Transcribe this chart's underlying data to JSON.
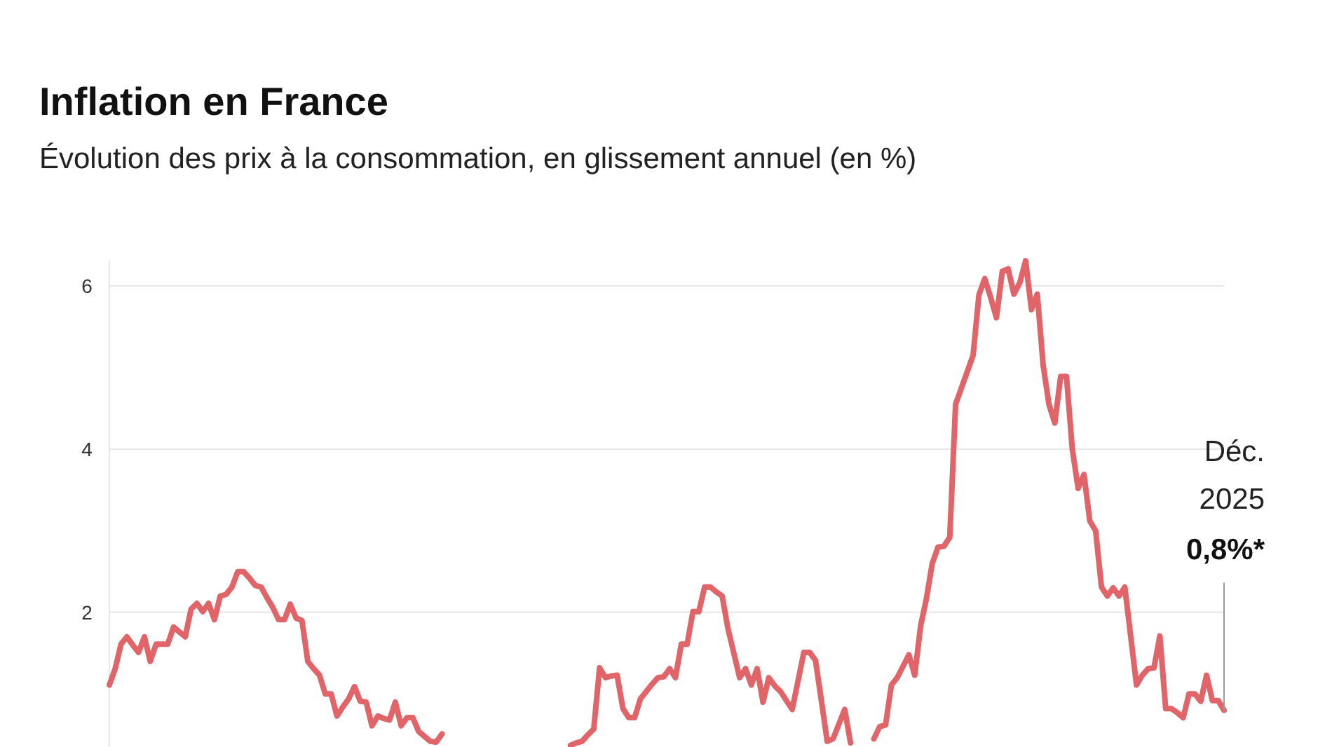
{
  "chart_data": {
    "type": "line",
    "title": "Inflation en France",
    "subtitle": "Évolution des prix à la consommation, en glissement annuel (en %)",
    "categories": [
      null,
      null,
      null,
      null,
      null,
      null,
      null,
      null,
      null,
      null,
      null,
      null,
      null,
      null,
      null,
      null,
      null,
      null,
      null,
      null,
      null,
      null,
      null,
      null,
      null,
      null,
      null,
      null,
      null,
      null,
      null,
      null,
      null,
      null,
      null,
      null,
      null,
      null,
      null,
      null,
      null,
      null,
      null,
      null,
      null,
      null,
      null,
      null,
      null,
      null,
      null,
      null,
      null,
      null,
      null,
      null,
      null,
      null,
      null,
      null,
      null,
      null,
      null,
      null,
      null,
      null,
      null,
      null,
      null,
      null,
      null,
      null,
      null,
      null,
      null,
      null,
      null,
      null,
      null,
      null,
      null,
      null,
      null,
      null,
      null,
      null,
      null,
      null,
      null,
      null,
      null,
      null,
      null,
      null,
      null,
      null,
      null,
      null,
      null,
      null,
      null,
      null,
      null,
      null,
      null,
      null,
      null,
      null,
      null,
      null,
      null,
      null,
      null,
      null,
      null,
      null,
      null,
      null,
      null,
      null,
      null,
      null,
      null,
      null,
      null,
      null,
      null,
      null,
      null,
      null,
      null,
      null,
      null,
      null,
      null,
      null,
      null,
      null,
      null,
      null,
      null,
      null,
      null,
      null,
      null,
      null,
      null,
      null,
      null,
      null,
      null,
      null,
      null,
      null,
      null,
      null,
      null,
      null,
      null,
      null,
      null,
      null,
      null,
      null,
      null,
      null,
      null,
      null,
      null,
      null,
      null,
      null,
      null,
      null,
      null,
      null,
      null,
      null,
      null,
      null,
      null,
      null,
      null,
      null,
      null,
      null,
      null,
      null,
      null,
      null,
      null,
      null
    ],
    "series": [
      {
        "color": "#e06468",
        "values": [
          1.11,
          1.31,
          1.61,
          1.7,
          1.6,
          1.51,
          1.7,
          1.4,
          1.61,
          1.61,
          1.61,
          1.82,
          1.76,
          1.7,
          2.04,
          2.11,
          2.01,
          2.11,
          1.91,
          2.2,
          2.22,
          2.31,
          2.5,
          2.5,
          2.42,
          2.33,
          2.31,
          2.18,
          2.06,
          1.91,
          1.91,
          2.1,
          1.93,
          1.9,
          1.4,
          1.31,
          1.23,
          1.0,
          1.0,
          0.73,
          0.84,
          0.94,
          1.09,
          0.91,
          0.9,
          0.61,
          0.73,
          0.7,
          0.68,
          0.9,
          0.61,
          0.71,
          0.71,
          0.54,
          0.48,
          0.42,
          0.41,
          0.51,
          null,
          null,
          null,
          null,
          null,
          null,
          null,
          null,
          null,
          null,
          null,
          null,
          null,
          null,
          null,
          null,
          null,
          null,
          null,
          null,
          null,
          0.37,
          0.4,
          0.42,
          0.5,
          0.57,
          1.32,
          1.2,
          1.22,
          1.23,
          0.82,
          0.71,
          0.71,
          0.94,
          1.03,
          1.12,
          1.2,
          1.21,
          1.31,
          1.2,
          1.61,
          1.61,
          2.01,
          2.01,
          2.31,
          2.31,
          2.25,
          2.2,
          1.8,
          1.5,
          1.2,
          1.31,
          1.11,
          1.31,
          0.9,
          1.2,
          1.1,
          1.03,
          0.92,
          0.81,
          1.16,
          1.51,
          1.51,
          1.41,
          0.92,
          0.42,
          0.45,
          0.63,
          0.81,
          0.4,
          null,
          null,
          null,
          0.45,
          0.6,
          0.62,
          1.11,
          1.2,
          1.34,
          1.48,
          1.23,
          1.83,
          2.17,
          2.6,
          2.8,
          2.81,
          2.92,
          4.55,
          4.75,
          4.95,
          5.15,
          5.89,
          6.09,
          5.86,
          5.61,
          6.18,
          6.21,
          5.9,
          6.04,
          6.31,
          5.71,
          5.9,
          5.03,
          4.55,
          4.32,
          4.89,
          4.89,
          4.0,
          3.52,
          3.69,
          3.12,
          3.0,
          2.31,
          2.2,
          2.3,
          2.2,
          2.31,
          1.71,
          1.11,
          1.23,
          1.31,
          1.32,
          1.71,
          0.82,
          0.82,
          0.77,
          0.71,
          1.0,
          1.0,
          0.91,
          1.23,
          0.92,
          0.92,
          0.8
        ]
      }
    ],
    "ylim": [
      0.35,
      6.31
    ],
    "yticks": [
      2,
      4,
      6
    ],
    "grid": "y",
    "tick_labels": "y",
    "marker": "none",
    "line_style": "solid",
    "annotations": [
      "Déc.\n2025",
      "0,8%*"
    ]
  }
}
